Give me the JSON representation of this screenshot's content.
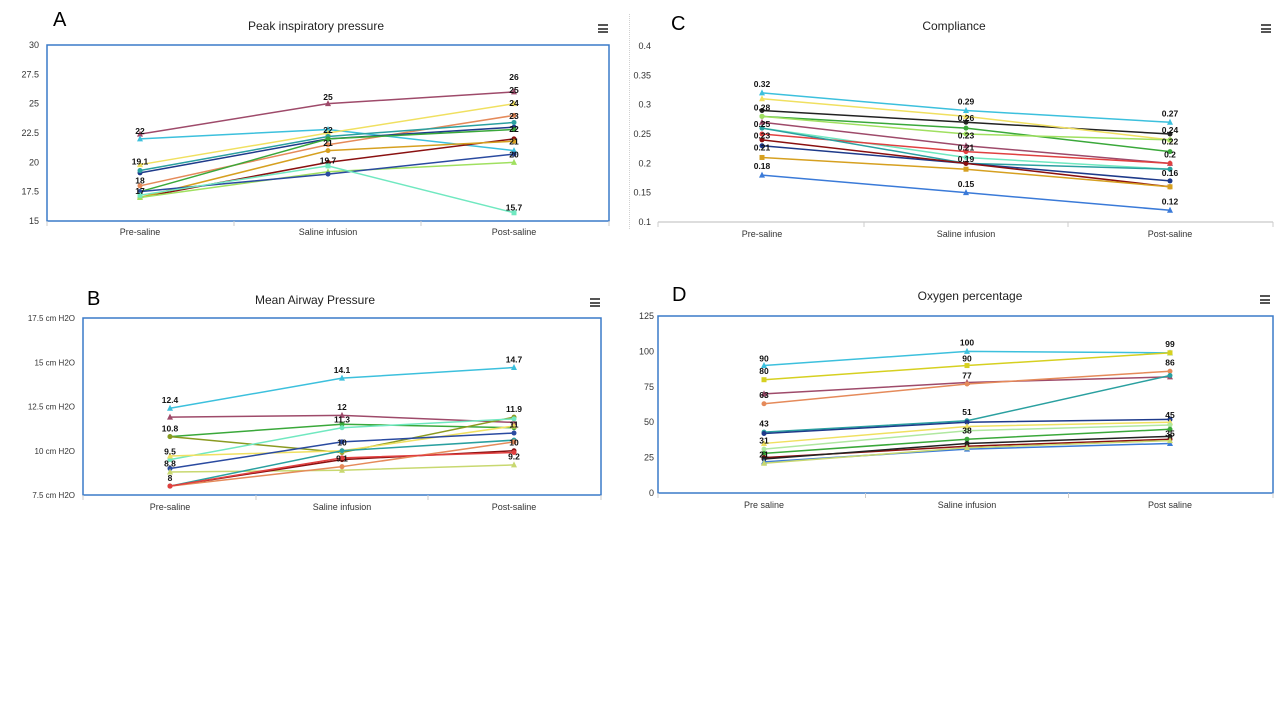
{
  "panel_letters": {
    "A": "A",
    "B": "B",
    "C": "C",
    "D": "D"
  },
  "palette": [
    "#9e4a6a",
    "#3cc0dd",
    "#2a4aa0",
    "#e58a5a",
    "#f0e060",
    "#2aa0a0",
    "#8a1010",
    "#1e3a8a",
    "#d6a020",
    "#3aa83a",
    "#c8d870",
    "#e04040",
    "#b0e8a0",
    "#70e8c0",
    "#5a9ad8",
    "#222222",
    "#8a7ad8",
    "#a0e060"
  ],
  "chart_data": [
    {
      "id": "A",
      "type": "line",
      "title": "Peak inspiratory pressure",
      "categories": [
        "Pre-saline",
        "Saline infusion",
        "Post-saline"
      ],
      "ylim": [
        15,
        30
      ],
      "yticks": [
        "15",
        "17.5",
        "20",
        "22.5",
        "25",
        "27.5",
        "30"
      ],
      "ytick_values": [
        15,
        17.5,
        20,
        22.5,
        25,
        27.5,
        30
      ],
      "grid": false,
      "series": [
        {
          "values": [
            22.4,
            25,
            26
          ],
          "color": "#9e4a6a",
          "marker": "triangle"
        },
        {
          "values": [
            22,
            22.8,
            21
          ],
          "color": "#3cc0dd",
          "marker": "triangle"
        },
        {
          "values": [
            19.8,
            22.5,
            25
          ],
          "color": "#f0e060",
          "marker": "triangle"
        },
        {
          "values": [
            18,
            21.5,
            24
          ],
          "color": "#e58a5a",
          "marker": "circle"
        },
        {
          "values": [
            19.1,
            22,
            23
          ],
          "color": "#1e3a8a",
          "marker": "circle"
        },
        {
          "values": [
            19.3,
            22.2,
            23.4
          ],
          "color": "#2aa0a0",
          "marker": "circle"
        },
        {
          "values": [
            17.5,
            22,
            22.8
          ],
          "color": "#3aa83a",
          "marker": "circle"
        },
        {
          "values": [
            17,
            20,
            22
          ],
          "color": "#8a1010",
          "marker": "circle"
        },
        {
          "values": [
            17,
            21,
            21.8
          ],
          "color": "#d6a020",
          "marker": "circle"
        },
        {
          "values": [
            17,
            19.2,
            20
          ],
          "color": "#a0e060",
          "marker": "triangle"
        },
        {
          "values": [
            17.5,
            19,
            20.7
          ],
          "color": "#2a4aa0",
          "marker": "circle"
        },
        {
          "values": [
            17.2,
            19.7,
            15.7
          ],
          "color": "#70e8c0",
          "marker": "square"
        }
      ],
      "data_labels": [
        {
          "c": 0,
          "y": 22.4,
          "text": "22"
        },
        {
          "c": 0,
          "y": 19.8,
          "text": "19.1"
        },
        {
          "c": 0,
          "y": 18.2,
          "text": "18"
        },
        {
          "c": 0,
          "y": 17.3,
          "text": "17"
        },
        {
          "c": 1,
          "y": 25.3,
          "text": "25"
        },
        {
          "c": 1,
          "y": 22.5,
          "text": "22"
        },
        {
          "c": 1,
          "y": 21.4,
          "text": "21"
        },
        {
          "c": 1,
          "y": 19.9,
          "text": "19.7"
        },
        {
          "c": 2,
          "y": 27,
          "text": "26"
        },
        {
          "c": 2,
          "y": 25.9,
          "text": "25"
        },
        {
          "c": 2,
          "y": 24.8,
          "text": "24"
        },
        {
          "c": 2,
          "y": 23.7,
          "text": "23"
        },
        {
          "c": 2,
          "y": 22.6,
          "text": "22"
        },
        {
          "c": 2,
          "y": 21.5,
          "text": "21"
        },
        {
          "c": 2,
          "y": 20.4,
          "text": "20"
        },
        {
          "c": 2,
          "y": 15.9,
          "text": "15.7"
        }
      ]
    },
    {
      "id": "B",
      "type": "line",
      "title": "Mean Airway Pressure",
      "categories": [
        "Pre-saline",
        "Saline infusion",
        "Post-saline"
      ],
      "ylim": [
        7.5,
        17.5
      ],
      "yticks": [
        "7.5 cm H2O",
        "10 cm H2O",
        "12.5 cm H2O",
        "15 cm H2O",
        "17.5 cm H2O"
      ],
      "ytick_values": [
        7.5,
        10,
        12.5,
        15,
        17.5
      ],
      "grid": false,
      "series": [
        {
          "values": [
            12.4,
            14.1,
            14.7
          ],
          "color": "#3cc0dd",
          "marker": "triangle"
        },
        {
          "values": [
            11.9,
            12,
            11.6
          ],
          "color": "#9e4a6a",
          "marker": "triangle"
        },
        {
          "values": [
            10.8,
            11.5,
            11.3
          ],
          "color": "#3aa83a",
          "marker": "circle"
        },
        {
          "values": [
            10.8,
            9.9,
            11.9
          ],
          "color": "#8a9a20",
          "marker": "circle"
        },
        {
          "values": [
            9.5,
            11.3,
            11.8
          ],
          "color": "#70e8c0",
          "marker": "circle"
        },
        {
          "values": [
            9.7,
            10,
            11.4
          ],
          "color": "#f0e060",
          "marker": "triangle"
        },
        {
          "values": [
            9,
            10.5,
            11
          ],
          "color": "#2a4aa0",
          "marker": "circle"
        },
        {
          "values": [
            8.8,
            8.9,
            9.2
          ],
          "color": "#c8d870",
          "marker": "triangle"
        },
        {
          "values": [
            8,
            10,
            10.6
          ],
          "color": "#2aa0a0",
          "marker": "circle"
        },
        {
          "values": [
            8,
            9.5,
            10
          ],
          "color": "#8a1010",
          "marker": "circle"
        },
        {
          "values": [
            8,
            9.1,
            10.5
          ],
          "color": "#e58a5a",
          "marker": "circle"
        },
        {
          "values": [
            8,
            9.6,
            9.9
          ],
          "color": "#e04040",
          "marker": "circle"
        }
      ],
      "data_labels": [
        {
          "c": 0,
          "y": 12.7,
          "text": "12.4"
        },
        {
          "c": 0,
          "y": 11.1,
          "text": "10.8"
        },
        {
          "c": 0,
          "y": 9.8,
          "text": "9.5"
        },
        {
          "c": 0,
          "y": 9.1,
          "text": "8.8"
        },
        {
          "c": 0,
          "y": 8.3,
          "text": "8"
        },
        {
          "c": 1,
          "y": 14.4,
          "text": "14.1"
        },
        {
          "c": 1,
          "y": 12.3,
          "text": "12"
        },
        {
          "c": 1,
          "y": 11.6,
          "text": "11.3"
        },
        {
          "c": 1,
          "y": 10.3,
          "text": "10"
        },
        {
          "c": 1,
          "y": 9.4,
          "text": "9.1"
        },
        {
          "c": 2,
          "y": 15,
          "text": "14.7"
        },
        {
          "c": 2,
          "y": 12.2,
          "text": "11.9"
        },
        {
          "c": 2,
          "y": 11.3,
          "text": "11"
        },
        {
          "c": 2,
          "y": 10.3,
          "text": "10"
        },
        {
          "c": 2,
          "y": 9.5,
          "text": "9.2"
        }
      ]
    },
    {
      "id": "C",
      "type": "line",
      "title": "Compliance",
      "categories": [
        "Pre-saline",
        "Saline infusion",
        "Post-saline"
      ],
      "ylim": [
        0.1,
        0.4
      ],
      "yticks": [
        "0.1",
        "0.15",
        "0.2",
        "0.25",
        "0.3",
        "0.35",
        "0.4"
      ],
      "ytick_values": [
        0.1,
        0.15,
        0.2,
        0.25,
        0.3,
        0.35,
        0.4
      ],
      "grid": false,
      "series": [
        {
          "values": [
            0.32,
            0.29,
            0.27
          ],
          "color": "#3cc0dd",
          "marker": "triangle"
        },
        {
          "values": [
            0.29,
            0.27,
            0.25
          ],
          "color": "#222222",
          "marker": "circle"
        },
        {
          "values": [
            0.31,
            0.28,
            0.24
          ],
          "color": "#f0e060",
          "marker": "triangle"
        },
        {
          "values": [
            0.28,
            0.26,
            0.22
          ],
          "color": "#3aa83a",
          "marker": "circle"
        },
        {
          "values": [
            0.28,
            0.25,
            0.24
          ],
          "color": "#a0e060",
          "marker": "circle"
        },
        {
          "values": [
            0.27,
            0.23,
            0.2
          ],
          "color": "#9e4a6a",
          "marker": "triangle"
        },
        {
          "values": [
            0.26,
            0.21,
            0.19
          ],
          "color": "#70e8c0",
          "marker": "circle"
        },
        {
          "values": [
            0.25,
            0.22,
            0.2
          ],
          "color": "#e04040",
          "marker": "circle"
        },
        {
          "values": [
            0.26,
            0.2,
            0.19
          ],
          "color": "#2aa0a0",
          "marker": "circle"
        },
        {
          "values": [
            0.23,
            0.2,
            0.17
          ],
          "color": "#1e3a8a",
          "marker": "circle"
        },
        {
          "values": [
            0.24,
            0.2,
            0.16
          ],
          "color": "#8a1010",
          "marker": "circle"
        },
        {
          "values": [
            0.21,
            0.19,
            0.16
          ],
          "color": "#d6a020",
          "marker": "square"
        },
        {
          "values": [
            0.18,
            0.15,
            0.12
          ],
          "color": "#3a7ad8",
          "marker": "triangle"
        }
      ],
      "data_labels": [
        {
          "c": 0,
          "y": 0.33,
          "text": "0.32"
        },
        {
          "c": 0,
          "y": 0.29,
          "text": "0.28"
        },
        {
          "c": 0,
          "y": 0.262,
          "text": "0.25"
        },
        {
          "c": 0,
          "y": 0.242,
          "text": "0.23"
        },
        {
          "c": 0,
          "y": 0.222,
          "text": "0.21"
        },
        {
          "c": 0,
          "y": 0.19,
          "text": "0.18"
        },
        {
          "c": 1,
          "y": 0.3,
          "text": "0.29"
        },
        {
          "c": 1,
          "y": 0.272,
          "text": "0.26"
        },
        {
          "c": 1,
          "y": 0.242,
          "text": "0.23"
        },
        {
          "c": 1,
          "y": 0.222,
          "text": "0.21"
        },
        {
          "c": 1,
          "y": 0.202,
          "text": "0.19"
        },
        {
          "c": 1,
          "y": 0.16,
          "text": "0.15"
        },
        {
          "c": 2,
          "y": 0.28,
          "text": "0.27"
        },
        {
          "c": 2,
          "y": 0.252,
          "text": "0.24"
        },
        {
          "c": 2,
          "y": 0.232,
          "text": "0.22"
        },
        {
          "c": 2,
          "y": 0.21,
          "text": "0.2"
        },
        {
          "c": 2,
          "y": 0.178,
          "text": "0.16"
        },
        {
          "c": 2,
          "y": 0.13,
          "text": "0.12"
        }
      ]
    },
    {
      "id": "D",
      "type": "line",
      "title": "Oxygen percentage",
      "categories": [
        "Pre saline",
        "Saline infusion",
        "Post saline"
      ],
      "ylim": [
        0,
        125
      ],
      "yticks": [
        "0",
        "25",
        "50",
        "75",
        "100",
        "125"
      ],
      "ytick_values": [
        0,
        25,
        50,
        75,
        100,
        125
      ],
      "grid": false,
      "series": [
        {
          "values": [
            90,
            100,
            99
          ],
          "color": "#3cc0dd",
          "marker": "triangle"
        },
        {
          "values": [
            80,
            90,
            99
          ],
          "color": "#d6d020",
          "marker": "square"
        },
        {
          "values": [
            70,
            78,
            82
          ],
          "color": "#9e4a6a",
          "marker": "triangle"
        },
        {
          "values": [
            63,
            77,
            86
          ],
          "color": "#e58a5a",
          "marker": "circle"
        },
        {
          "values": [
            43,
            51,
            83
          ],
          "color": "#2aa0a0",
          "marker": "circle"
        },
        {
          "values": [
            42,
            50,
            52
          ],
          "color": "#1e3a8a",
          "marker": "circle"
        },
        {
          "values": [
            35,
            47,
            50
          ],
          "color": "#f0e060",
          "marker": "triangle"
        },
        {
          "values": [
            31,
            44,
            48
          ],
          "color": "#b0e8a0",
          "marker": "circle"
        },
        {
          "values": [
            28,
            38,
            45
          ],
          "color": "#3aa83a",
          "marker": "circle"
        },
        {
          "values": [
            25,
            33,
            38
          ],
          "color": "#8a1010",
          "marker": "circle"
        },
        {
          "values": [
            24,
            35,
            40
          ],
          "color": "#222222",
          "marker": "circle"
        },
        {
          "values": [
            22,
            31,
            35
          ],
          "color": "#3a7ad8",
          "marker": "triangle"
        },
        {
          "values": [
            21,
            32,
            37
          ],
          "color": "#c8d870",
          "marker": "triangle"
        }
      ],
      "data_labels": [
        {
          "c": 0,
          "y": 93,
          "text": "90"
        },
        {
          "c": 0,
          "y": 84,
          "text": "80"
        },
        {
          "c": 0,
          "y": 67,
          "text": "63"
        },
        {
          "c": 0,
          "y": 47,
          "text": "43"
        },
        {
          "c": 0,
          "y": 35,
          "text": "31"
        },
        {
          "c": 0,
          "y": 25,
          "text": "21"
        },
        {
          "c": 1,
          "y": 104,
          "text": "100"
        },
        {
          "c": 1,
          "y": 93,
          "text": "90"
        },
        {
          "c": 1,
          "y": 81,
          "text": "77"
        },
        {
          "c": 1,
          "y": 55,
          "text": "51"
        },
        {
          "c": 1,
          "y": 42,
          "text": "38"
        },
        {
          "c": 2,
          "y": 103,
          "text": "99"
        },
        {
          "c": 2,
          "y": 90,
          "text": "86"
        },
        {
          "c": 2,
          "y": 53,
          "text": "45"
        },
        {
          "c": 2,
          "y": 40,
          "text": "35"
        }
      ]
    }
  ]
}
